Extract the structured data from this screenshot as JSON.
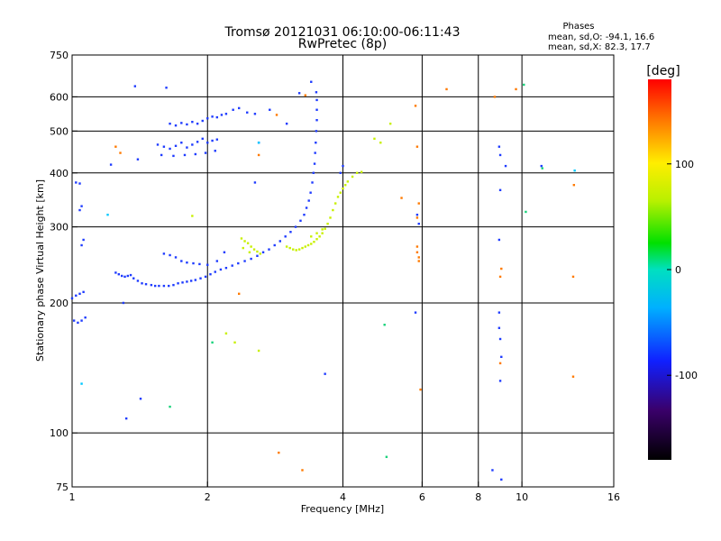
{
  "chart_data": {
    "type": "scatter",
    "title": "Tromsø 20121031 06:10:00-06:11:43",
    "subtitle": "RwPretec (8p)",
    "stats": {
      "heading": "Phases",
      "line_o": "mean, sd,O: -94.1, 16.6",
      "line_x": "mean, sd,X:  82.3, 17.7"
    },
    "xlabel": "Frequency [MHz]",
    "ylabel": "Stationary phase Virtual Height [km]",
    "x_scale": "log",
    "y_scale": "log",
    "xlim": [
      1,
      16
    ],
    "ylim": [
      75,
      750
    ],
    "x_ticks": [
      {
        "value": 1,
        "label": "1"
      },
      {
        "value": 2,
        "label": "2"
      },
      {
        "value": 4,
        "label": "4"
      },
      {
        "value": 6,
        "label": "6"
      },
      {
        "value": 8,
        "label": "8"
      },
      {
        "value": 10,
        "label": "10"
      },
      {
        "value": 16,
        "label": "16"
      }
    ],
    "x_gridlines": [
      2,
      4,
      6,
      8,
      10
    ],
    "y_ticks": [
      {
        "value": 75,
        "label": "75"
      },
      {
        "value": 100,
        "label": "100"
      },
      {
        "value": 200,
        "label": "200"
      },
      {
        "value": 300,
        "label": "300"
      },
      {
        "value": 400,
        "label": "400"
      },
      {
        "value": 500,
        "label": "500"
      },
      {
        "value": 600,
        "label": "600"
      },
      {
        "value": 750,
        "label": "750"
      }
    ],
    "y_gridlines": [
      100,
      200,
      300,
      400,
      500,
      600
    ],
    "colorbar": {
      "label": "[deg]",
      "range": [
        -180,
        180
      ],
      "ticks": [
        {
          "value": 100,
          "label": "100"
        },
        {
          "value": 0,
          "label": "0"
        },
        {
          "value": -100,
          "label": "-100"
        }
      ]
    },
    "series": [
      {
        "mode": "O",
        "color": "#1f3cff",
        "points": [
          [
            1.0,
            205
          ],
          [
            1.02,
            208
          ],
          [
            1.04,
            210
          ],
          [
            1.06,
            212
          ],
          [
            1.01,
            182
          ],
          [
            1.03,
            180
          ],
          [
            1.05,
            182
          ],
          [
            1.07,
            185
          ],
          [
            1.02,
            380
          ],
          [
            1.04,
            378
          ],
          [
            1.05,
            335
          ],
          [
            1.04,
            328
          ],
          [
            1.06,
            280
          ],
          [
            1.05,
            272
          ],
          [
            1.25,
            235
          ],
          [
            1.27,
            233
          ],
          [
            1.29,
            231
          ],
          [
            1.31,
            230
          ],
          [
            1.33,
            231
          ],
          [
            1.35,
            232
          ],
          [
            1.37,
            228
          ],
          [
            1.4,
            225
          ],
          [
            1.43,
            222
          ],
          [
            1.46,
            221
          ],
          [
            1.5,
            220
          ],
          [
            1.53,
            219
          ],
          [
            1.56,
            219
          ],
          [
            1.6,
            219
          ],
          [
            1.64,
            219
          ],
          [
            1.68,
            220
          ],
          [
            1.72,
            222
          ],
          [
            1.76,
            223
          ],
          [
            1.8,
            224
          ],
          [
            1.84,
            225
          ],
          [
            1.88,
            226
          ],
          [
            1.93,
            228
          ],
          [
            1.98,
            230
          ],
          [
            2.03,
            233
          ],
          [
            2.08,
            236
          ],
          [
            2.14,
            239
          ],
          [
            2.2,
            241
          ],
          [
            2.27,
            244
          ],
          [
            2.34,
            247
          ],
          [
            2.42,
            250
          ],
          [
            2.5,
            253
          ],
          [
            2.58,
            257
          ],
          [
            2.66,
            262
          ],
          [
            2.74,
            266
          ],
          [
            2.82,
            272
          ],
          [
            2.9,
            278
          ],
          [
            2.98,
            285
          ],
          [
            3.06,
            292
          ],
          [
            3.14,
            300
          ],
          [
            3.22,
            310
          ],
          [
            3.28,
            320
          ],
          [
            3.32,
            332
          ],
          [
            3.36,
            345
          ],
          [
            3.39,
            360
          ],
          [
            3.42,
            380
          ],
          [
            3.44,
            400
          ],
          [
            3.46,
            420
          ],
          [
            3.47,
            445
          ],
          [
            3.48,
            470
          ],
          [
            3.49,
            500
          ],
          [
            3.5,
            530
          ],
          [
            3.5,
            560
          ],
          [
            3.5,
            590
          ],
          [
            3.49,
            615
          ],
          [
            1.6,
            260
          ],
          [
            1.65,
            258
          ],
          [
            1.7,
            255
          ],
          [
            1.75,
            250
          ],
          [
            1.8,
            248
          ],
          [
            1.86,
            247
          ],
          [
            1.92,
            246
          ],
          [
            2.0,
            245
          ],
          [
            2.1,
            250
          ],
          [
            2.18,
            262
          ],
          [
            1.55,
            465
          ],
          [
            1.6,
            460
          ],
          [
            1.65,
            455
          ],
          [
            1.7,
            462
          ],
          [
            1.75,
            470
          ],
          [
            1.8,
            458
          ],
          [
            1.85,
            465
          ],
          [
            1.9,
            472
          ],
          [
            1.95,
            480
          ],
          [
            2.0,
            470
          ],
          [
            2.05,
            475
          ],
          [
            2.1,
            478
          ],
          [
            1.58,
            440
          ],
          [
            1.68,
            438
          ],
          [
            1.78,
            440
          ],
          [
            1.88,
            442
          ],
          [
            1.98,
            445
          ],
          [
            2.08,
            450
          ],
          [
            1.65,
            520
          ],
          [
            1.7,
            515
          ],
          [
            1.75,
            522
          ],
          [
            1.8,
            518
          ],
          [
            1.85,
            525
          ],
          [
            1.9,
            520
          ],
          [
            1.95,
            528
          ],
          [
            2.0,
            535
          ],
          [
            2.05,
            540
          ],
          [
            2.1,
            538
          ],
          [
            2.15,
            545
          ],
          [
            2.2,
            548
          ],
          [
            2.28,
            560
          ],
          [
            2.35,
            565
          ],
          [
            2.45,
            552
          ],
          [
            2.55,
            548
          ],
          [
            1.22,
            418
          ],
          [
            1.4,
            430
          ],
          [
            1.38,
            635
          ],
          [
            1.62,
            630
          ],
          [
            2.55,
            380
          ],
          [
            3.2,
            612
          ],
          [
            3.4,
            650
          ],
          [
            4.0,
            415
          ],
          [
            3.95,
            400
          ],
          [
            2.6,
            470
          ],
          [
            2.75,
            560
          ],
          [
            3.0,
            520
          ],
          [
            5.85,
            320
          ],
          [
            5.9,
            305
          ],
          [
            5.8,
            190
          ],
          [
            8.9,
            460
          ],
          [
            8.95,
            440
          ],
          [
            9.2,
            415
          ],
          [
            8.95,
            365
          ],
          [
            8.9,
            280
          ],
          [
            8.9,
            190
          ],
          [
            8.9,
            175
          ],
          [
            8.95,
            165
          ],
          [
            9.0,
            150
          ],
          [
            8.95,
            132
          ],
          [
            8.6,
            82
          ],
          [
            9.0,
            78
          ],
          [
            11.05,
            415
          ],
          [
            1.3,
            200
          ],
          [
            1.42,
            120
          ],
          [
            1.32,
            108
          ],
          [
            3.65,
            137
          ]
        ]
      },
      {
        "mode": "X",
        "color": "#c8f000",
        "points": [
          [
            2.38,
            282
          ],
          [
            2.42,
            278
          ],
          [
            2.46,
            275
          ],
          [
            2.5,
            270
          ],
          [
            2.54,
            266
          ],
          [
            2.58,
            263
          ],
          [
            2.62,
            260
          ],
          [
            2.4,
            268
          ],
          [
            2.48,
            262
          ],
          [
            3.0,
            270
          ],
          [
            3.05,
            268
          ],
          [
            3.1,
            266
          ],
          [
            3.15,
            265
          ],
          [
            3.2,
            266
          ],
          [
            3.25,
            268
          ],
          [
            3.3,
            270
          ],
          [
            3.35,
            272
          ],
          [
            3.4,
            274
          ],
          [
            3.45,
            277
          ],
          [
            3.5,
            281
          ],
          [
            3.55,
            285
          ],
          [
            3.6,
            290
          ],
          [
            3.65,
            297
          ],
          [
            3.7,
            305
          ],
          [
            3.75,
            315
          ],
          [
            3.8,
            328
          ],
          [
            3.85,
            340
          ],
          [
            3.9,
            352
          ],
          [
            3.95,
            360
          ],
          [
            4.0,
            368
          ],
          [
            4.05,
            375
          ],
          [
            4.1,
            382
          ],
          [
            4.2,
            392
          ],
          [
            4.3,
            400
          ],
          [
            4.4,
            402
          ],
          [
            3.5,
            290
          ],
          [
            3.6,
            296
          ],
          [
            3.4,
            285
          ],
          [
            1.85,
            318
          ],
          [
            2.3,
            162
          ],
          [
            2.6,
            155
          ],
          [
            2.2,
            170
          ],
          [
            4.7,
            480
          ],
          [
            5.1,
            520
          ],
          [
            4.85,
            470
          ]
        ]
      },
      {
        "mode": "other",
        "color": "#ff7a00",
        "points": [
          [
            1.25,
            460
          ],
          [
            1.28,
            445
          ],
          [
            2.6,
            440
          ],
          [
            2.85,
            545
          ],
          [
            5.4,
            350
          ],
          [
            5.8,
            572
          ],
          [
            6.8,
            625
          ],
          [
            5.85,
            460
          ],
          [
            5.9,
            340
          ],
          [
            5.85,
            315
          ],
          [
            5.85,
            270
          ],
          [
            5.85,
            262
          ],
          [
            5.9,
            255
          ],
          [
            5.9,
            250
          ],
          [
            2.35,
            210
          ],
          [
            2.88,
            90
          ],
          [
            3.25,
            82
          ],
          [
            8.7,
            600
          ],
          [
            9.7,
            625
          ],
          [
            13.05,
            375
          ],
          [
            13.0,
            230
          ],
          [
            13.0,
            135
          ],
          [
            9.0,
            240
          ],
          [
            8.95,
            230
          ],
          [
            8.95,
            145
          ],
          [
            5.95,
            126
          ],
          [
            3.3,
            605
          ]
        ]
      },
      {
        "mode": "other",
        "color": "#18d27a",
        "points": [
          [
            2.05,
            162
          ],
          [
            10.1,
            640
          ],
          [
            10.2,
            325
          ],
          [
            11.1,
            410
          ],
          [
            4.95,
            178
          ],
          [
            1.65,
            115
          ],
          [
            5.0,
            88
          ]
        ]
      },
      {
        "mode": "other",
        "color": "#00c8ff",
        "points": [
          [
            1.05,
            130
          ],
          [
            1.2,
            320
          ],
          [
            13.1,
            405
          ],
          [
            2.6,
            470
          ]
        ]
      }
    ]
  }
}
